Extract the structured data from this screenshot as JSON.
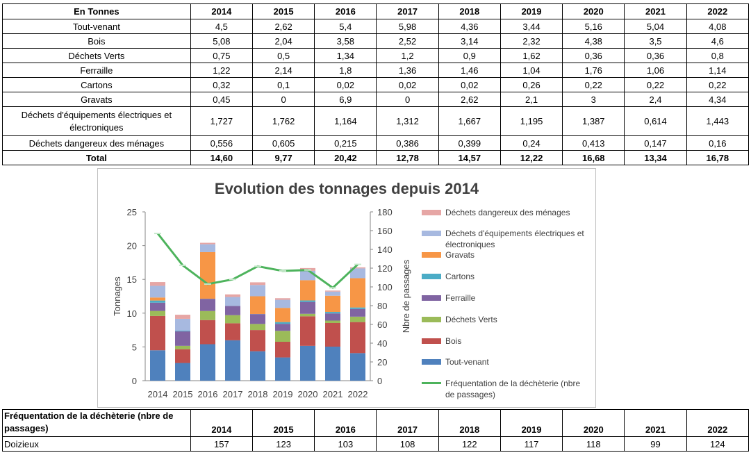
{
  "top_table": {
    "header": [
      "En Tonnes",
      "2014",
      "2015",
      "2016",
      "2017",
      "2018",
      "2019",
      "2020",
      "2021",
      "2022"
    ],
    "rows": [
      {
        "label": "Tout-venant",
        "values": [
          "4,5",
          "2,62",
          "5,4",
          "5,98",
          "4,36",
          "3,44",
          "5,16",
          "5,04",
          "4,08"
        ]
      },
      {
        "label": "Bois",
        "values": [
          "5,08",
          "2,04",
          "3,58",
          "2,52",
          "3,14",
          "2,32",
          "4,38",
          "3,5",
          "4,6"
        ]
      },
      {
        "label": "Déchets Verts",
        "values": [
          "0,75",
          "0,5",
          "1,34",
          "1,2",
          "0,9",
          "1,62",
          "0,36",
          "0,36",
          "0,8"
        ]
      },
      {
        "label": "Ferraille",
        "values": [
          "1,22",
          "2,14",
          "1,8",
          "1,36",
          "1,46",
          "1,04",
          "1,76",
          "1,06",
          "1,14"
        ]
      },
      {
        "label": "Cartons",
        "values": [
          "0,32",
          "0,1",
          "0,02",
          "0,02",
          "0,02",
          "0,26",
          "0,22",
          "0,22",
          "0,22"
        ]
      },
      {
        "label": "Gravats",
        "values": [
          "0,45",
          "0",
          "6,9",
          "0",
          "2,62",
          "2,1",
          "3",
          "2,4",
          "4,34"
        ]
      },
      {
        "label": "Déchets d'équipements électriques et électroniques",
        "values": [
          "1,727",
          "1,762",
          "1,164",
          "1,312",
          "1,667",
          "1,195",
          "1,387",
          "0,614",
          "1,443"
        ]
      },
      {
        "label": "Déchets dangereux des ménages",
        "values": [
          "0,556",
          "0,605",
          "0,215",
          "0,386",
          "0,399",
          "0,24",
          "0,413",
          "0,147",
          "0,16"
        ]
      }
    ],
    "total": {
      "label": "Total",
      "values": [
        "14,60",
        "9,77",
        "20,42",
        "12,78",
        "14,57",
        "12,22",
        "16,68",
        "13,34",
        "16,78"
      ]
    }
  },
  "bottom_table": {
    "header": [
      "Fréquentation de la déchèterie (nbre de passages)",
      "2014",
      "2015",
      "2016",
      "2017",
      "2018",
      "2019",
      "2020",
      "2021",
      "2022"
    ],
    "row": {
      "label": "Doizieux",
      "values": [
        "157",
        "123",
        "103",
        "108",
        "122",
        "117",
        "118",
        "99",
        "124"
      ]
    }
  },
  "chart_data": {
    "type": "bar",
    "stacked": true,
    "title": "Evolution des tonnages depuis 2014",
    "categories": [
      "2014",
      "2015",
      "2016",
      "2017",
      "2018",
      "2019",
      "2020",
      "2021",
      "2022"
    ],
    "ylabel": "Tonnages",
    "y2label": "Nbre de passages",
    "ylim": [
      0,
      25
    ],
    "y2lim": [
      0,
      180
    ],
    "yticks": [
      "0",
      "5",
      "10",
      "15",
      "20",
      "25"
    ],
    "y2ticks": [
      "0",
      "20",
      "40",
      "60",
      "80",
      "100",
      "120",
      "140",
      "160",
      "180"
    ],
    "grid": false,
    "legend_position": "right",
    "series": [
      {
        "name": "Tout-venant",
        "color": "#4f81bd",
        "values": [
          4.5,
          2.62,
          5.4,
          5.98,
          4.36,
          3.44,
          5.16,
          5.04,
          4.08
        ]
      },
      {
        "name": "Bois",
        "color": "#c0504d",
        "values": [
          5.08,
          2.04,
          3.58,
          2.52,
          3.14,
          2.32,
          4.38,
          3.5,
          4.6
        ]
      },
      {
        "name": "Déchets Verts",
        "color": "#9bbb59",
        "values": [
          0.75,
          0.5,
          1.34,
          1.2,
          0.9,
          1.62,
          0.36,
          0.36,
          0.8
        ]
      },
      {
        "name": "Ferraille",
        "color": "#8064a2",
        "values": [
          1.22,
          2.14,
          1.8,
          1.36,
          1.46,
          1.04,
          1.76,
          1.06,
          1.14
        ]
      },
      {
        "name": "Cartons",
        "color": "#4bacc6",
        "values": [
          0.32,
          0.1,
          0.02,
          0.02,
          0.02,
          0.26,
          0.22,
          0.22,
          0.22
        ]
      },
      {
        "name": "Gravats",
        "color": "#f79646",
        "values": [
          0.45,
          0,
          6.9,
          0,
          2.62,
          2.1,
          3,
          2.4,
          4.34
        ]
      },
      {
        "name": "Déchets d'équipements électriques et électroniques",
        "color": "#a7b9e0",
        "values": [
          1.727,
          1.762,
          1.164,
          1.312,
          1.667,
          1.195,
          1.387,
          0.614,
          1.443
        ]
      },
      {
        "name": "Déchets dangereux des ménages",
        "color": "#e6a6a5",
        "values": [
          0.556,
          0.605,
          0.215,
          0.386,
          0.399,
          0.24,
          0.413,
          0.147,
          0.16
        ]
      }
    ],
    "line_series": {
      "name": "Fréquentation de la déchèterie (nbre de passages)",
      "color": "#4db35c",
      "axis": "right",
      "values": [
        157,
        123,
        103,
        108,
        122,
        117,
        118,
        99,
        124
      ]
    }
  }
}
